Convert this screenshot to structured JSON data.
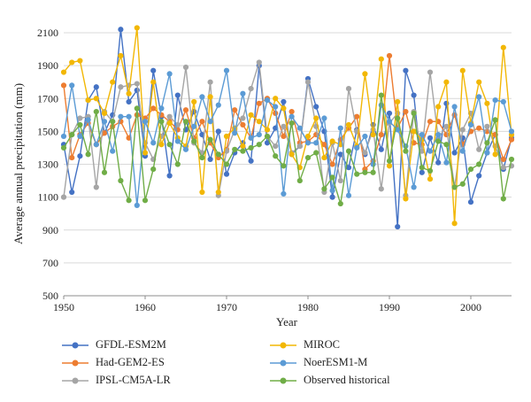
{
  "chart_data": {
    "type": "line",
    "title": "",
    "xlabel": "Year",
    "ylabel": "Average annual precipitation (mm)",
    "xlim": [
      1950,
      2005
    ],
    "ylim": [
      500,
      2100
    ],
    "xticks": [
      "1950",
      "1960",
      "1970",
      "1980",
      "1990",
      "2000"
    ],
    "yticks": [
      "500",
      "700",
      "900",
      "1100",
      "1300",
      "1500",
      "1700",
      "1900",
      "2100"
    ],
    "grid": "horizontal",
    "legend_position": "bottom",
    "x": [
      1950,
      1951,
      1952,
      1953,
      1954,
      1955,
      1956,
      1957,
      1958,
      1959,
      1960,
      1961,
      1962,
      1963,
      1964,
      1965,
      1966,
      1967,
      1968,
      1969,
      1970,
      1971,
      1972,
      1973,
      1974,
      1975,
      1976,
      1977,
      1978,
      1979,
      1980,
      1981,
      1982,
      1983,
      1984,
      1985,
      1986,
      1987,
      1988,
      1989,
      1990,
      1991,
      1992,
      1993,
      1994,
      1995,
      1996,
      1997,
      1998,
      1999,
      2000,
      2001,
      2002,
      2003,
      2004,
      2005
    ],
    "series": [
      {
        "name": "GFDL-ESM2M",
        "color": "#4472C4",
        "values": [
          1420,
          1130,
          1350,
          1690,
          1770,
          1490,
          1600,
          2120,
          1680,
          1750,
          1350,
          1870,
          1590,
          1230,
          1720,
          1510,
          1620,
          1480,
          1330,
          1500,
          1240,
          1370,
          1430,
          1320,
          1900,
          1430,
          1520,
          1680,
          1360,
          1410,
          1820,
          1650,
          1500,
          1100,
          1360,
          1280,
          1510,
          1360,
          1540,
          1390,
          1610,
          920,
          1870,
          1720,
          1250,
          1460,
          1310,
          1670,
          1370,
          1460,
          1070,
          1230,
          1370,
          1480,
          1270,
          1460
        ]
      },
      {
        "name": "Had-GEM2-ES",
        "color": "#ED7D31",
        "values": [
          1780,
          1340,
          1480,
          1550,
          1420,
          1490,
          1530,
          1560,
          1460,
          1600,
          1580,
          1640,
          1600,
          1560,
          1510,
          1630,
          1460,
          1560,
          1430,
          1340,
          1390,
          1630,
          1540,
          1460,
          1670,
          1700,
          1610,
          1470,
          1620,
          1430,
          1440,
          1480,
          1420,
          1300,
          1450,
          1520,
          1590,
          1270,
          1320,
          1480,
          1960,
          1520,
          1620,
          1430,
          1420,
          1560,
          1560,
          1480,
          1600,
          1420,
          1500,
          1520,
          1500,
          1480,
          1330,
          1450
        ]
      },
      {
        "name": "IPSL-CM5A-LR",
        "color": "#A5A5A5",
        "values": [
          1100,
          1480,
          1580,
          1590,
          1160,
          1620,
          1560,
          1770,
          1780,
          1790,
          1430,
          1330,
          1470,
          1590,
          1540,
          1890,
          1430,
          1370,
          1800,
          1110,
          1380,
          1510,
          1580,
          1760,
          1920,
          1470,
          1410,
          1530,
          1370,
          1410,
          1800,
          1530,
          1130,
          1430,
          1200,
          1760,
          1500,
          1370,
          1510,
          1150,
          1550,
          1610,
          1110,
          1620,
          1380,
          1860,
          1460,
          1530,
          1160,
          1510,
          1610,
          1390,
          1530,
          1410,
          1280,
          1290
        ]
      },
      {
        "name": "MIROC",
        "color": "#F2B705",
        "values": [
          1860,
          1920,
          1930,
          1690,
          1700,
          1610,
          1800,
          1960,
          1730,
          2130,
          1370,
          1800,
          1420,
          1550,
          1460,
          1410,
          1680,
          1130,
          1710,
          1130,
          1470,
          1520,
          1410,
          1600,
          1560,
          1510,
          1700,
          1640,
          1360,
          1280,
          1470,
          1580,
          1340,
          1440,
          1420,
          1540,
          1410,
          1850,
          1480,
          1940,
          1290,
          1680,
          1090,
          1500,
          1450,
          1210,
          1650,
          1800,
          940,
          1870,
          1550,
          1800,
          1670,
          1360,
          2010,
          1480
        ]
      },
      {
        "name": "NoerESM1-M",
        "color": "#5B9BD5",
        "values": [
          1470,
          1780,
          1470,
          1570,
          1420,
          1560,
          1380,
          1590,
          1590,
          1050,
          1560,
          1430,
          1640,
          1850,
          1440,
          1390,
          1530,
          1710,
          1560,
          1660,
          1870,
          1490,
          1730,
          1460,
          1480,
          1690,
          1650,
          1120,
          1590,
          1520,
          1430,
          1430,
          1580,
          1140,
          1520,
          1110,
          1400,
          1470,
          1300,
          1660,
          1560,
          1510,
          1410,
          1160,
          1480,
          1380,
          1480,
          1310,
          1650,
          1380,
          1540,
          1710,
          1370,
          1690,
          1680,
          1500
        ]
      },
      {
        "name": "Observed historical",
        "color": "#70AD47",
        "values": [
          1400,
          1480,
          1540,
          1360,
          1620,
          1250,
          1560,
          1200,
          1080,
          1640,
          1080,
          1270,
          1560,
          1420,
          1300,
          1560,
          1440,
          1340,
          1450,
          1360,
          1300,
          1390,
          1380,
          1400,
          1420,
          1470,
          1350,
          1290,
          1550,
          1200,
          1340,
          1370,
          1150,
          1220,
          1060,
          1380,
          1240,
          1250,
          1250,
          1720,
          1320,
          1580,
          1380,
          1610,
          1280,
          1260,
          1440,
          1420,
          1160,
          1180,
          1270,
          1300,
          1430,
          1570,
          1090,
          1330
        ]
      }
    ]
  }
}
